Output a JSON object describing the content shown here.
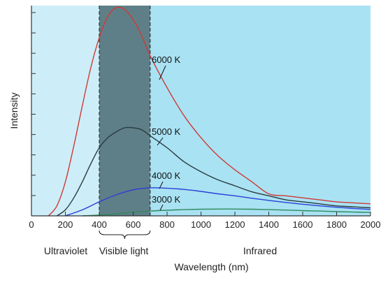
{
  "chart_data": {
    "type": "line",
    "title": "",
    "xlabel": "Wavelength (nm)",
    "ylabel": "Intensity",
    "xlim": [
      0,
      2000
    ],
    "ylim": [
      0,
      1.05
    ],
    "x_ticks": [
      0,
      200,
      400,
      600,
      800,
      1000,
      1200,
      1400,
      1600,
      1800,
      2000
    ],
    "y_tick_count": 11,
    "grid": false,
    "regions": [
      {
        "name": "Ultraviolet",
        "from": 0,
        "to": 400,
        "color": "#cdeef8"
      },
      {
        "name": "Visible light",
        "from": 400,
        "to": 700,
        "color": "#5f7f88"
      },
      {
        "name": "Infrared",
        "from": 700,
        "to": 2000,
        "color": "#a9e2f3"
      }
    ],
    "series": [
      {
        "name": "6000 K",
        "color": "#d03a35",
        "x": [
          100,
          150,
          200,
          250,
          300,
          350,
          400,
          450,
          500,
          550,
          600,
          650,
          700,
          800,
          900,
          1000,
          1100,
          1200,
          1300,
          1400,
          1500,
          1600,
          1700,
          1800,
          1900,
          2000
        ],
        "values": [
          0.0,
          0.05,
          0.17,
          0.35,
          0.55,
          0.74,
          0.89,
          0.995,
          1.04,
          1.03,
          0.98,
          0.9,
          0.8,
          0.64,
          0.5,
          0.39,
          0.3,
          0.23,
          0.17,
          0.11,
          0.1,
          0.09,
          0.08,
          0.07,
          0.065,
          0.06
        ]
      },
      {
        "name": "5000 K",
        "color": "#2a3b3f",
        "x": [
          150,
          200,
          250,
          300,
          350,
          400,
          450,
          500,
          550,
          600,
          650,
          700,
          800,
          900,
          1000,
          1100,
          1200,
          1300,
          1400,
          1500,
          1600,
          1700,
          1800,
          1900,
          2000
        ],
        "values": [
          0.0,
          0.03,
          0.09,
          0.17,
          0.26,
          0.34,
          0.39,
          0.42,
          0.44,
          0.44,
          0.43,
          0.4,
          0.34,
          0.27,
          0.22,
          0.18,
          0.15,
          0.12,
          0.1,
          0.08,
          0.07,
          0.06,
          0.05,
          0.045,
          0.04
        ]
      },
      {
        "name": "4000 K",
        "color": "#2b3fd6",
        "x": [
          200,
          300,
          400,
          500,
          600,
          700,
          800,
          900,
          1000,
          1100,
          1200,
          1300,
          1400,
          1500,
          1600,
          1700,
          1800,
          1900,
          2000
        ],
        "values": [
          0.0,
          0.03,
          0.07,
          0.105,
          0.13,
          0.14,
          0.138,
          0.132,
          0.122,
          0.11,
          0.1,
          0.088,
          0.077,
          0.067,
          0.058,
          0.05,
          0.043,
          0.037,
          0.032
        ]
      },
      {
        "name": "3000 K",
        "color": "#2f8a5c",
        "x": [
          300,
          400,
          500,
          600,
          700,
          800,
          900,
          1000,
          1100,
          1200,
          1300,
          1400,
          1500,
          1600,
          1700,
          1800,
          1900,
          2000
        ],
        "values": [
          0.0,
          0.004,
          0.01,
          0.018,
          0.024,
          0.028,
          0.031,
          0.033,
          0.034,
          0.034,
          0.033,
          0.031,
          0.029,
          0.026,
          0.024,
          0.021,
          0.019,
          0.017
        ]
      }
    ]
  }
}
